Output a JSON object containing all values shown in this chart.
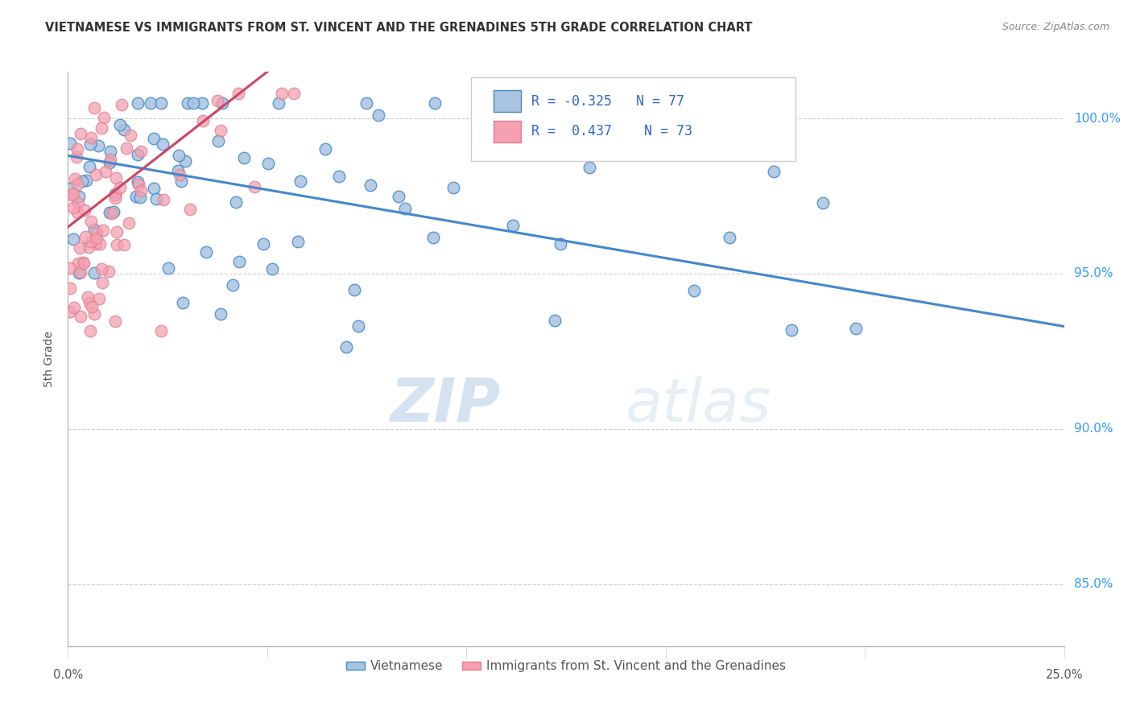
{
  "title": "VIETNAMESE VS IMMIGRANTS FROM ST. VINCENT AND THE GRENADINES 5TH GRADE CORRELATION CHART",
  "source": "Source: ZipAtlas.com",
  "ylabel": "5th Grade",
  "ytick_labels": [
    "85.0%",
    "90.0%",
    "95.0%",
    "100.0%"
  ],
  "ytick_values": [
    85.0,
    90.0,
    95.0,
    100.0
  ],
  "xlim": [
    0.0,
    25.0
  ],
  "ylim": [
    83.0,
    101.5
  ],
  "legend_label_blue": "Vietnamese",
  "legend_label_pink": "Immigrants from St. Vincent and the Grenadines",
  "R_blue": -0.325,
  "N_blue": 77,
  "R_pink": 0.437,
  "N_pink": 73,
  "blue_color": "#a8c4e0",
  "pink_color": "#f4a0b0",
  "line_blue": "#4488cc",
  "line_pink": "#cc4466",
  "watermark_zip": "ZIP",
  "watermark_atlas": "atlas",
  "blue_slope": -0.22,
  "blue_intercept": 98.8,
  "pink_slope": 1.0,
  "pink_intercept": 96.5,
  "pink_x_line_end": 6.0
}
